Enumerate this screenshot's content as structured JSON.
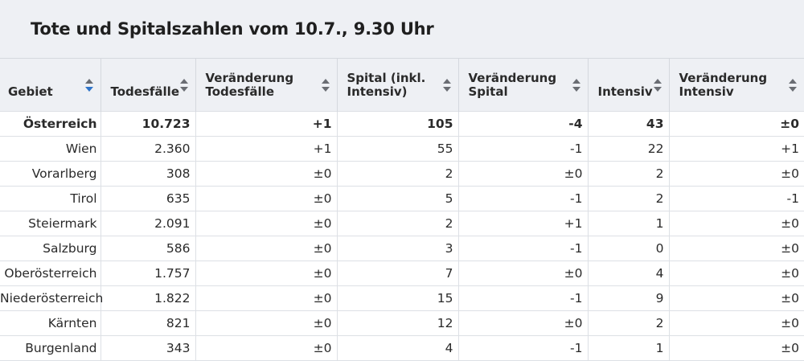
{
  "title": "Tote und Spitalszahlen vom 10.7., 9.30 Uhr",
  "columns": [
    {
      "label": "Gebiet",
      "sort_active": true
    },
    {
      "label": "Todesfälle",
      "sort_active": false
    },
    {
      "label": "Veränderung Todesfälle",
      "sort_active": false
    },
    {
      "label": "Spital (inkl. Intensiv)",
      "sort_active": false
    },
    {
      "label": "Veränderung Spital",
      "sort_active": false
    },
    {
      "label": "Intensiv",
      "sort_active": false
    },
    {
      "label": "Veränderung Intensiv",
      "sort_active": false
    }
  ],
  "rows": [
    {
      "gebiet": "Österreich",
      "todesfaelle": "10.723",
      "veraenderung_todesfaelle": "+1",
      "spital": "105",
      "veraenderung_spital": "-4",
      "intensiv": "43",
      "veraenderung_intensiv": "±0"
    },
    {
      "gebiet": "Wien",
      "todesfaelle": "2.360",
      "veraenderung_todesfaelle": "+1",
      "spital": "55",
      "veraenderung_spital": "-1",
      "intensiv": "22",
      "veraenderung_intensiv": "+1"
    },
    {
      "gebiet": "Vorarlberg",
      "todesfaelle": "308",
      "veraenderung_todesfaelle": "±0",
      "spital": "2",
      "veraenderung_spital": "±0",
      "intensiv": "2",
      "veraenderung_intensiv": "±0"
    },
    {
      "gebiet": "Tirol",
      "todesfaelle": "635",
      "veraenderung_todesfaelle": "±0",
      "spital": "5",
      "veraenderung_spital": "-1",
      "intensiv": "2",
      "veraenderung_intensiv": "-1"
    },
    {
      "gebiet": "Steiermark",
      "todesfaelle": "2.091",
      "veraenderung_todesfaelle": "±0",
      "spital": "2",
      "veraenderung_spital": "+1",
      "intensiv": "1",
      "veraenderung_intensiv": "±0"
    },
    {
      "gebiet": "Salzburg",
      "todesfaelle": "586",
      "veraenderung_todesfaelle": "±0",
      "spital": "3",
      "veraenderung_spital": "-1",
      "intensiv": "0",
      "veraenderung_intensiv": "±0"
    },
    {
      "gebiet": "Oberösterreich",
      "todesfaelle": "1.757",
      "veraenderung_todesfaelle": "±0",
      "spital": "7",
      "veraenderung_spital": "±0",
      "intensiv": "4",
      "veraenderung_intensiv": "±0"
    },
    {
      "gebiet": "Niederösterreich",
      "todesfaelle": "1.822",
      "veraenderung_todesfaelle": "±0",
      "spital": "15",
      "veraenderung_spital": "-1",
      "intensiv": "9",
      "veraenderung_intensiv": "±0"
    },
    {
      "gebiet": "Kärnten",
      "todesfaelle": "821",
      "veraenderung_todesfaelle": "±0",
      "spital": "12",
      "veraenderung_spital": "±0",
      "intensiv": "2",
      "veraenderung_intensiv": "±0"
    },
    {
      "gebiet": "Burgenland",
      "todesfaelle": "343",
      "veraenderung_todesfaelle": "±0",
      "spital": "4",
      "veraenderung_spital": "-1",
      "intensiv": "1",
      "veraenderung_intensiv": "±0"
    }
  ],
  "icons": {
    "sort": "sort-icon",
    "sort_active_color": "#2f74c9",
    "sort_color": "#6a6d73"
  }
}
